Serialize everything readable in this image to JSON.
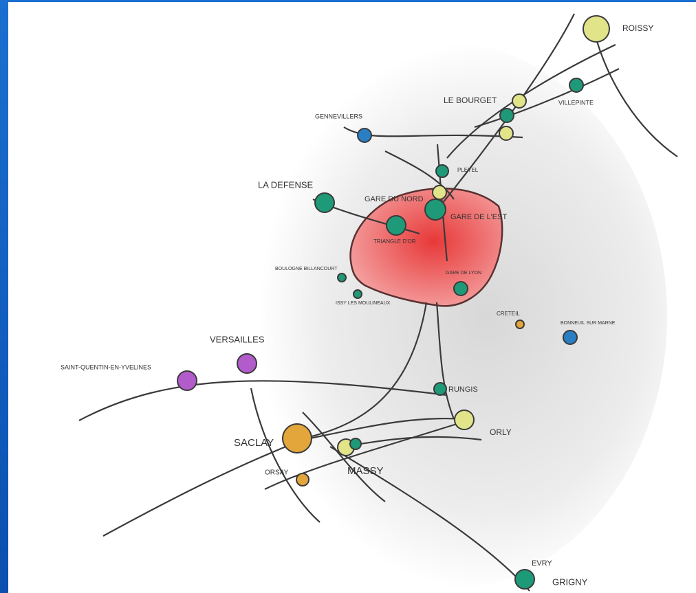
{
  "nodes": [
    {
      "label": "ROISSY"
    },
    {
      "label": "LE BOURGET"
    },
    {
      "label": "VILLEPINTE"
    },
    {
      "label": "GENNEVILLERS"
    },
    {
      "label": "PLEYEL"
    },
    {
      "label": "LA DEFENSE"
    },
    {
      "label": "GARE DU NORD"
    },
    {
      "label": "GARE DE L'EST"
    },
    {
      "label": "TRIANGLE D'OR"
    },
    {
      "label": "BOULOGNE BILLANCOURT"
    },
    {
      "label": "ISSY LES MOULINEAUX"
    },
    {
      "label": "GARE DE LYON"
    },
    {
      "label": "CRETEIL"
    },
    {
      "label": "BONNEUIL SUR MARNE"
    },
    {
      "label": "VERSAILLES"
    },
    {
      "label": "SAINT-QUENTIN-EN-YVELINES"
    },
    {
      "label": "RUNGIS"
    },
    {
      "label": "ORLY"
    },
    {
      "label": "SACLAY"
    },
    {
      "label": "MASSY"
    },
    {
      "label": "ORSAY"
    },
    {
      "label": "EVRY"
    },
    {
      "label": "GRIGNY"
    }
  ]
}
